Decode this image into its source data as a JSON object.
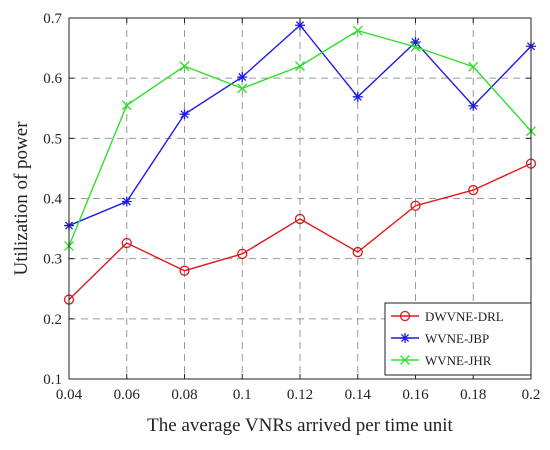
{
  "chart_data": {
    "type": "line",
    "title": "",
    "xlabel": "The average VNRs arrived per time unit",
    "ylabel": "Utilization of power",
    "x": [
      0.04,
      0.06,
      0.08,
      0.1,
      0.12,
      0.14,
      0.16,
      0.18,
      0.2
    ],
    "xticks": [
      "0.04",
      "0.06",
      "0.08",
      "0.1",
      "0.12",
      "0.14",
      "0.16",
      "0.18",
      "0.2"
    ],
    "yticks": [
      "0.1",
      "0.2",
      "0.3",
      "0.4",
      "0.5",
      "0.6",
      "0.7"
    ],
    "xlim": [
      0.04,
      0.2
    ],
    "ylim": [
      0.1,
      0.7
    ],
    "grid": true,
    "legend_position": "bottom-right",
    "series": [
      {
        "name": "DWVNE-DRL",
        "color": "#e0191b",
        "marker": "circle",
        "values": [
          0.232,
          0.326,
          0.28,
          0.308,
          0.366,
          0.311,
          0.388,
          0.414,
          0.458
        ]
      },
      {
        "name": "WVNE-JBP",
        "color": "#1c1ce6",
        "marker": "asterisk",
        "values": [
          0.355,
          0.395,
          0.54,
          0.602,
          0.688,
          0.569,
          0.66,
          0.554,
          0.653
        ]
      },
      {
        "name": "WVNE-JHR",
        "color": "#2ee02a",
        "marker": "x",
        "values": [
          0.321,
          0.555,
          0.62,
          0.583,
          0.62,
          0.679,
          0.652,
          0.619,
          0.512
        ]
      }
    ]
  }
}
